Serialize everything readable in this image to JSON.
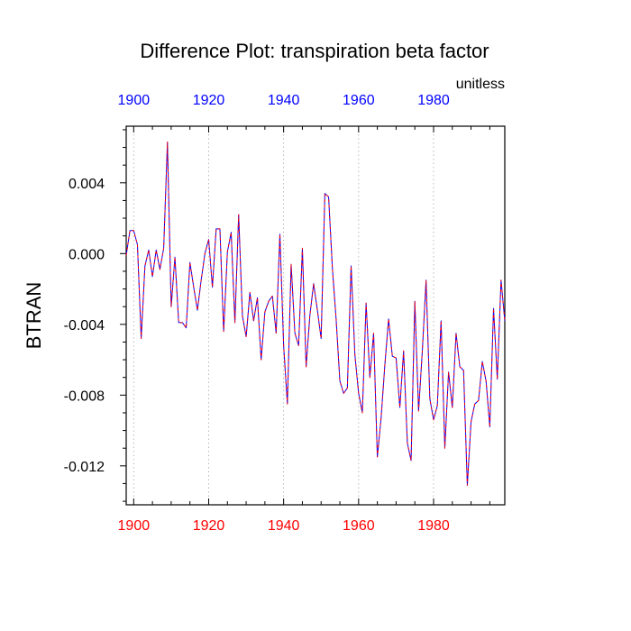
{
  "chart_data": {
    "type": "line",
    "title": "Difference Plot: transpiration beta factor",
    "units_label": "unitless",
    "ylabel": "BTRAN",
    "xlabel": "",
    "xlim": [
      1898,
      1999
    ],
    "ylim": [
      -0.0142,
      0.0072
    ],
    "x_ticks": [
      1900,
      1920,
      1940,
      1960,
      1980
    ],
    "x_tick_labels": [
      "1900",
      "1920",
      "1940",
      "1960",
      "1980"
    ],
    "y_ticks": [
      0.004,
      0.0,
      -0.004,
      -0.008,
      -0.012
    ],
    "y_tick_labels": [
      "0.004",
      "0.000",
      "-0.004",
      "-0.008",
      "-0.012"
    ],
    "grid": "vertical dotted lines at x ticks",
    "colors": {
      "top_axis_labels": "#0000ff",
      "bottom_axis_labels": "#ff0000",
      "series_solid": "#0000ff",
      "series_dashed": "#ff0000",
      "grid": "#aaaaaa"
    },
    "series": [
      {
        "x": [
          1898,
          1899,
          1900,
          1901,
          1902,
          1903,
          1904,
          1905,
          1906,
          1907,
          1908,
          1909,
          1910,
          1911,
          1912,
          1913,
          1914,
          1915,
          1916,
          1917,
          1918,
          1919,
          1920,
          1921,
          1922,
          1923,
          1924,
          1925,
          1926,
          1927,
          1928,
          1929,
          1930,
          1931,
          1932,
          1933,
          1934,
          1935,
          1936,
          1937,
          1938,
          1939,
          1940,
          1941,
          1942,
          1943,
          1944,
          1945,
          1946,
          1947,
          1948,
          1949,
          1950,
          1951,
          1952,
          1953,
          1954,
          1955,
          1956,
          1957,
          1958,
          1959,
          1960,
          1961,
          1962,
          1963,
          1964,
          1965,
          1966,
          1967,
          1968,
          1969,
          1970,
          1971,
          1972,
          1973,
          1974,
          1975,
          1976,
          1977,
          1978,
          1979,
          1980,
          1981,
          1982,
          1983,
          1984,
          1985,
          1986,
          1987,
          1988,
          1989,
          1990,
          1991,
          1992,
          1993,
          1994,
          1995,
          1996,
          1997,
          1998,
          1999
        ],
        "values": [
          -0.0001,
          0.0013,
          0.0013,
          0.0005,
          -0.0048,
          -0.0007,
          0.0002,
          -0.0013,
          0.0002,
          -0.0009,
          0.0003,
          0.0063,
          -0.003,
          -0.0002,
          -0.0039,
          -0.0039,
          -0.0042,
          -0.0005,
          -0.0019,
          -0.0032,
          -0.0015,
          0.0,
          0.0008,
          -0.0019,
          0.0014,
          0.0014,
          -0.0044,
          0.0001,
          0.0012,
          -0.0039,
          0.0022,
          -0.0035,
          -0.0047,
          -0.0022,
          -0.0038,
          -0.0025,
          -0.006,
          -0.0033,
          -0.0027,
          -0.0024,
          -0.0045,
          0.0011,
          -0.0052,
          -0.0085,
          -0.0006,
          -0.0045,
          -0.0052,
          0.0003,
          -0.0064,
          -0.0035,
          -0.0017,
          -0.0032,
          -0.0048,
          0.0034,
          0.0032,
          -0.0008,
          -0.0037,
          -0.0072,
          -0.0079,
          -0.0076,
          -0.0007,
          -0.0057,
          -0.0079,
          -0.009,
          -0.0028,
          -0.007,
          -0.0045,
          -0.0115,
          -0.0093,
          -0.0063,
          -0.0037,
          -0.0058,
          -0.0059,
          -0.0087,
          -0.0055,
          -0.0107,
          -0.0117,
          -0.0027,
          -0.0089,
          -0.0055,
          -0.0015,
          -0.0082,
          -0.0094,
          -0.0086,
          -0.0038,
          -0.011,
          -0.0067,
          -0.0087,
          -0.0045,
          -0.0064,
          -0.0066,
          -0.0131,
          -0.0095,
          -0.0085,
          -0.0083,
          -0.0061,
          -0.0072,
          -0.0098,
          -0.0031,
          -0.0071,
          -0.0015,
          -0.0038
        ]
      }
    ]
  }
}
